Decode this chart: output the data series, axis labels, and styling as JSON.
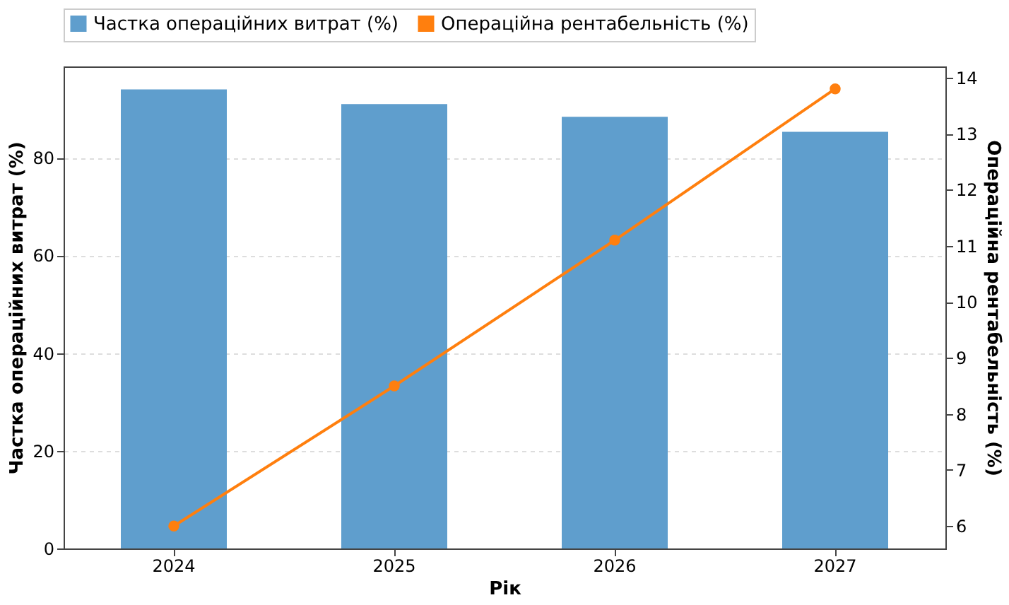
{
  "chart_data": {
    "type": "bar",
    "categories": [
      "2024",
      "2025",
      "2026",
      "2027"
    ],
    "xlabel": "Рік",
    "ylabel": "Частка операційних витрат (%)",
    "y2label": "Операційна рентабельність (%)",
    "series": [
      {
        "name": "Частка операційних витрат (%)",
        "color": "#5f9ecd",
        "values": [
          94,
          91,
          88.4,
          85.3
        ]
      },
      {
        "name": "Операційна рентабельність (%)",
        "type": "line",
        "axis": "y2",
        "color": "#ff7f0e",
        "values": [
          6.0,
          8.5,
          11.1,
          13.8
        ],
        "marker": "circle"
      }
    ],
    "ylim": [
      0,
      98.7
    ],
    "yticks": [
      0,
      20,
      40,
      60,
      80
    ],
    "y2lim": [
      5.6,
      14.2
    ],
    "y2ticks": [
      6,
      7,
      8,
      9,
      10,
      11,
      12,
      13,
      14
    ],
    "grid": "y",
    "legend": "top"
  }
}
